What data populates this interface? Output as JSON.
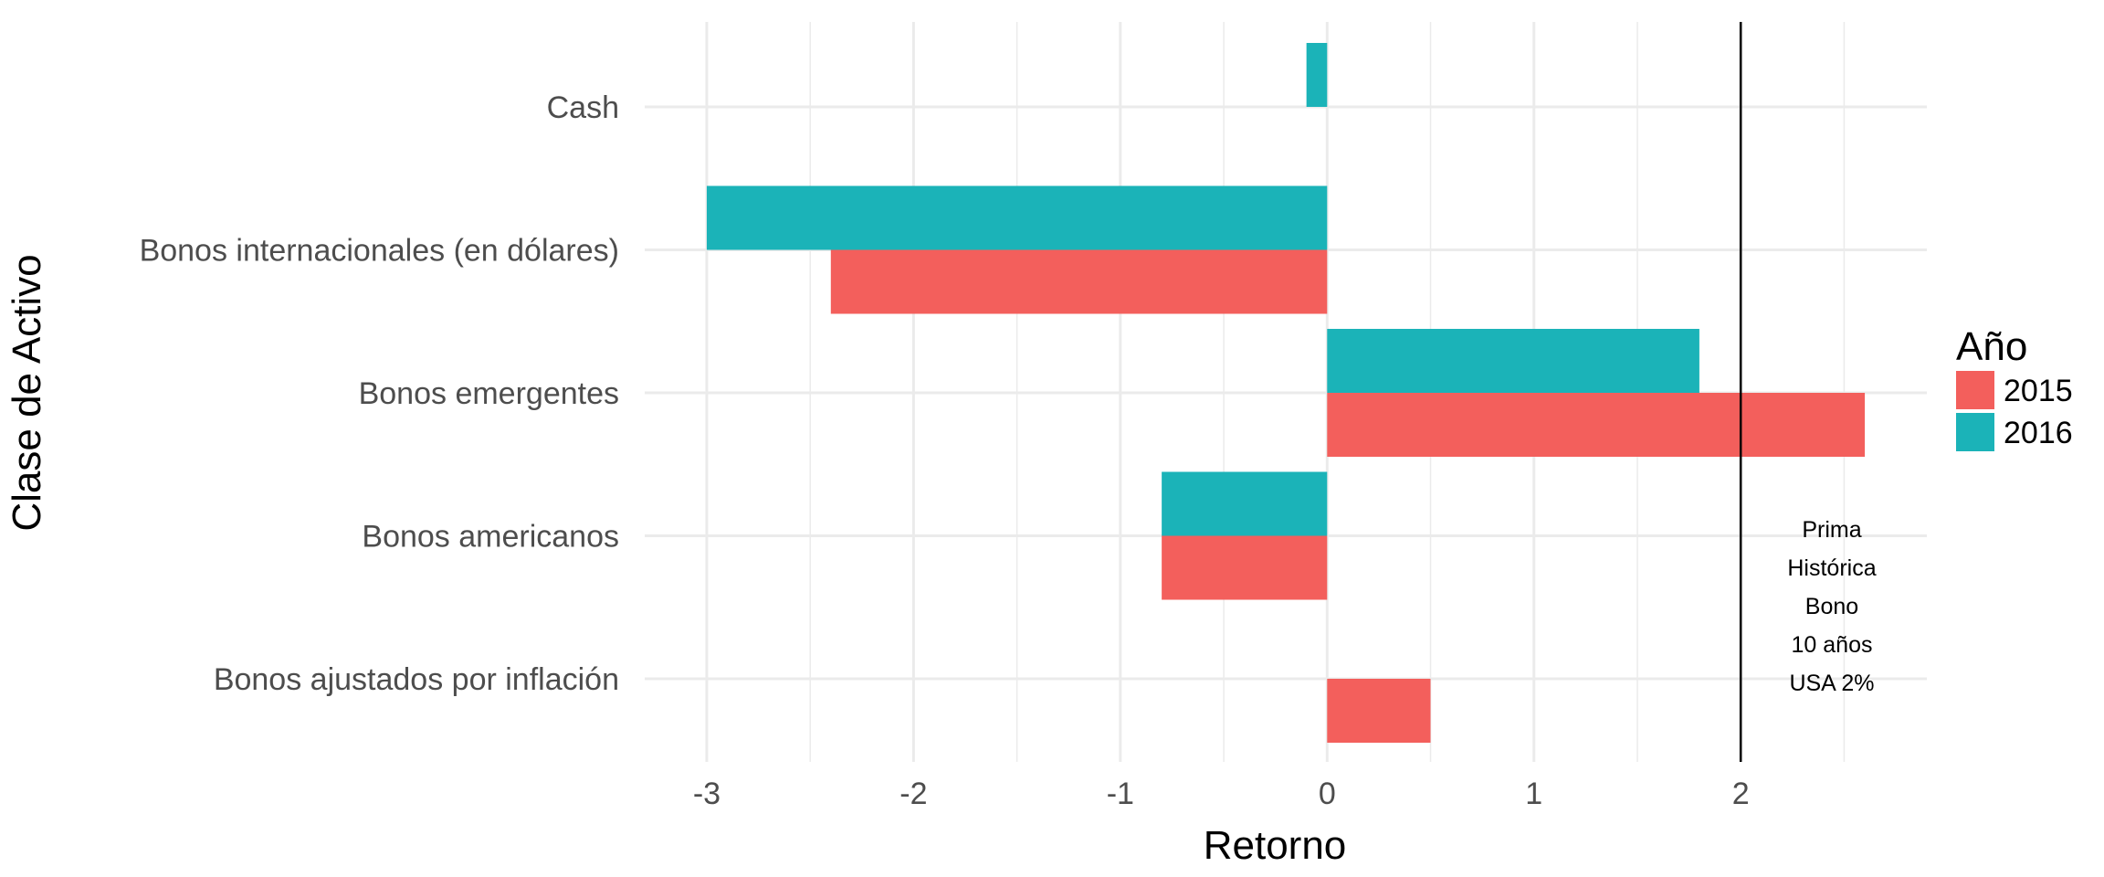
{
  "chart_data": {
    "type": "bar",
    "orientation": "horizontal",
    "xlabel": "Retorno",
    "ylabel": "Clase de Activo",
    "xlim": [
      -3.3,
      2.9
    ],
    "x_ticks": [
      "-3",
      "-2",
      "-1",
      "0",
      "1",
      "2"
    ],
    "x_tick_values": [
      -3,
      -2,
      -1,
      0,
      1,
      2
    ],
    "categories": [
      "Cash",
      "Bonos internacionales (en dólares)",
      "Bonos emergentes",
      "Bonos americanos",
      "Bonos ajustados por inflación"
    ],
    "legend": {
      "title": "Año",
      "position": "right"
    },
    "series": [
      {
        "name": "2016",
        "color": "#1bb3b8",
        "values": [
          -0.1,
          -3.0,
          1.8,
          -0.8,
          null
        ]
      },
      {
        "name": "2015",
        "color": "#f35f5c",
        "values": [
          null,
          -2.4,
          2.6,
          -0.8,
          0.5
        ]
      }
    ],
    "reference_line": {
      "x": 2,
      "color": "#000000"
    },
    "annotation": {
      "lines": [
        "Prima",
        "Histórica",
        "Bono",
        "10 años",
        "USA 2%"
      ]
    }
  }
}
